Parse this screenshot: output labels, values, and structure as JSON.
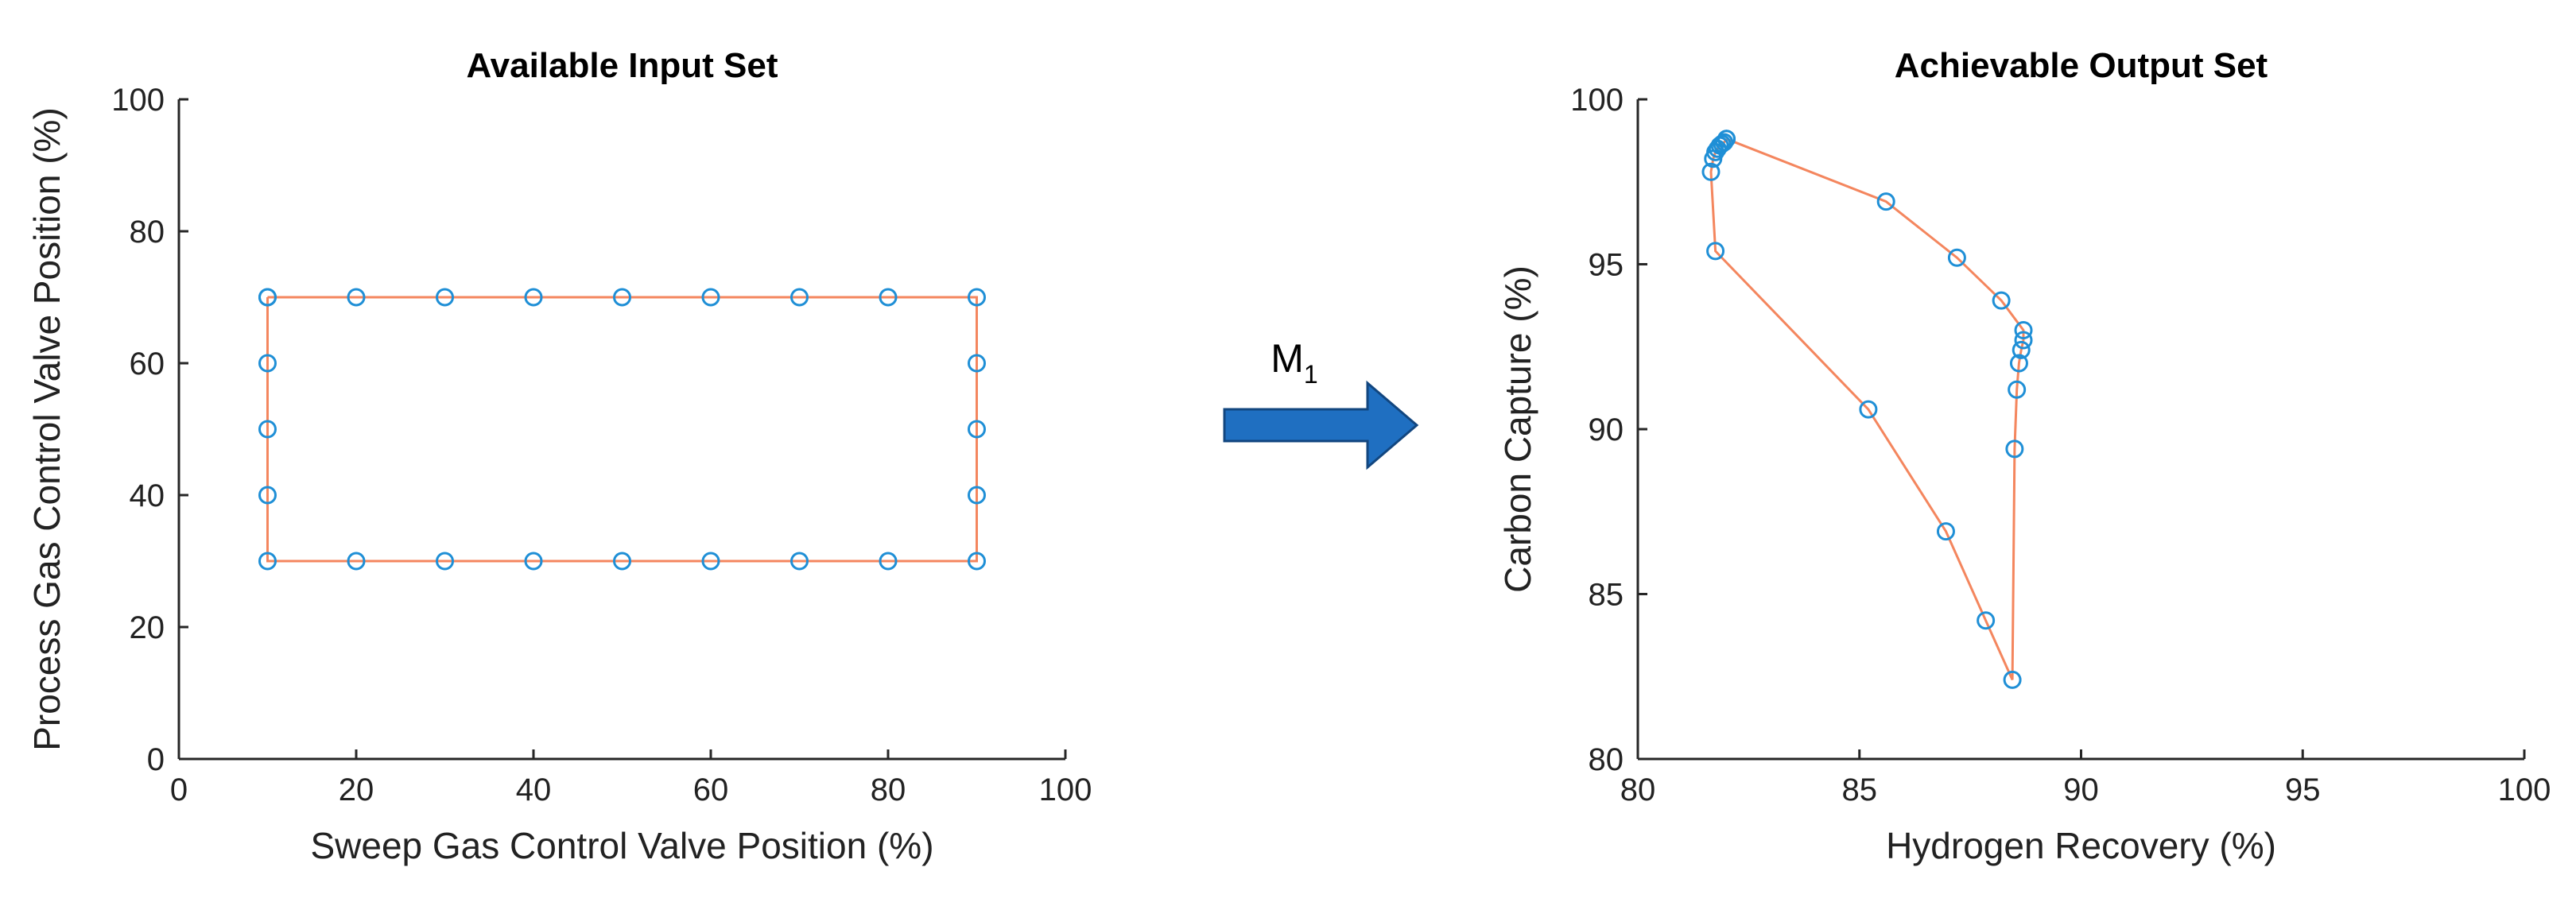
{
  "chart_data": [
    {
      "type": "line",
      "title": "Available Input Set",
      "xlabel": "Sweep Gas Control Valve Position (%)",
      "ylabel": "Process Gas Control Valve Position (%)",
      "xlim": [
        0,
        100
      ],
      "ylim": [
        0,
        100
      ],
      "xticks": [
        0,
        20,
        40,
        60,
        80,
        100
      ],
      "yticks": [
        0,
        20,
        40,
        60,
        80,
        100
      ],
      "grid": false,
      "line_color": "#F4865E",
      "marker_color": "#1F8FD6",
      "marker": "circle-open",
      "series": [
        {
          "x": [
            10,
            20,
            30,
            40,
            50,
            60,
            70,
            80,
            90,
            90,
            90,
            90,
            90,
            80,
            70,
            60,
            50,
            40,
            30,
            20,
            10,
            10,
            10,
            10,
            10
          ],
          "y": [
            70,
            70,
            70,
            70,
            70,
            70,
            70,
            70,
            70,
            60,
            50,
            40,
            30,
            30,
            30,
            30,
            30,
            30,
            30,
            30,
            30,
            40,
            50,
            60,
            70
          ]
        }
      ]
    },
    {
      "type": "line",
      "title": "Achievable Output Set",
      "xlabel": "Hydrogen Recovery (%)",
      "ylabel": "Carbon Capture (%)",
      "xlim": [
        80,
        100
      ],
      "ylim": [
        80,
        100
      ],
      "xticks": [
        80,
        85,
        90,
        95,
        100
      ],
      "yticks": [
        80,
        85,
        90,
        95,
        100
      ],
      "grid": false,
      "line_color": "#F4865E",
      "marker_color": "#1F8FD6",
      "marker": "circle-open",
      "series": [
        {
          "x": [
            82.0,
            85.6,
            87.2,
            88.2,
            88.7,
            88.7,
            88.65,
            88.6,
            88.55,
            88.5,
            88.45,
            87.85,
            86.95,
            85.2,
            81.75,
            81.65,
            81.7,
            81.75,
            81.8,
            81.85,
            81.9,
            81.95,
            82.0
          ],
          "y": [
            98.8,
            96.9,
            95.2,
            93.9,
            93.0,
            92.7,
            92.4,
            92.0,
            91.2,
            89.4,
            82.4,
            84.2,
            86.9,
            90.6,
            95.4,
            97.8,
            98.2,
            98.4,
            98.5,
            98.6,
            98.65,
            98.7,
            98.8
          ]
        }
      ]
    }
  ],
  "arrow": {
    "label": "M",
    "subscript": "1",
    "color": "#1F6FC1",
    "edge_color": "#12467F"
  }
}
